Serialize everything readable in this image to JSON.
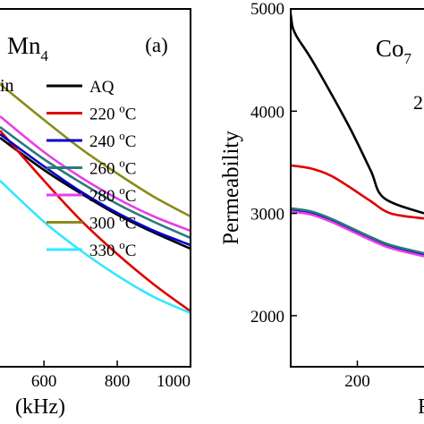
{
  "chart_data": [
    {
      "panel_label": "(a)",
      "type": "line",
      "title_partial": "Mn",
      "title_subscript": "4",
      "subtitle_partial": "in",
      "xlabel_partial": "(kHz)",
      "x_ticks": [
        "600",
        "800",
        "1000"
      ],
      "xlim": [
        480,
        1000
      ],
      "ylim": [
        0,
        100
      ],
      "legend_placement": "right",
      "series": [
        {
          "name": "AQ",
          "color": "#000000",
          "x": [
            480,
            600,
            700,
            800,
            900,
            1000
          ],
          "y": [
            64,
            55,
            48.5,
            42.5,
            37.5,
            33
          ]
        },
        {
          "name": "220 °C",
          "color": "#e00000",
          "x": [
            480,
            600,
            700,
            800,
            900,
            1000
          ],
          "y": [
            66,
            52,
            41,
            31.5,
            23,
            15.5
          ]
        },
        {
          "name": "240 °C",
          "color": "#0000cc",
          "x": [
            480,
            600,
            700,
            800,
            900,
            1000
          ],
          "y": [
            65,
            56,
            49,
            43,
            38,
            34
          ]
        },
        {
          "name": "260 °C",
          "color": "#2a7a7a",
          "x": [
            480,
            600,
            700,
            800,
            900,
            1000
          ],
          "y": [
            67,
            58,
            51.5,
            45.5,
            40.5,
            36
          ]
        },
        {
          "name": "280 °C",
          "color": "#e83ee8",
          "x": [
            480,
            600,
            700,
            800,
            900,
            1000
          ],
          "y": [
            70,
            60,
            53,
            47,
            42,
            38
          ]
        },
        {
          "name": "300 °C",
          "color": "#8a8a1a",
          "x": [
            480,
            600,
            700,
            800,
            900,
            1000
          ],
          "y": [
            79,
            69,
            61,
            54,
            47.5,
            42
          ]
        },
        {
          "name": "330 °C",
          "color": "#33e6ff",
          "x": [
            480,
            600,
            700,
            800,
            900,
            1000
          ],
          "y": [
            52,
            40.5,
            32.5,
            25.5,
            19.5,
            15
          ]
        }
      ]
    },
    {
      "type": "line",
      "title_partial": "Co",
      "title_subscript": "7",
      "subtitle_partial": "2",
      "xlabel_partial": "F",
      "ylabel": "Permeability",
      "y_ticks": [
        "2000",
        "3000",
        "4000",
        "5000"
      ],
      "x_ticks": [
        "200"
      ],
      "xlim": [
        100,
        300
      ],
      "ylim": [
        1500,
        5000
      ],
      "series": [
        {
          "color": "#000000",
          "x": [
            100,
            103,
            110,
            130,
            160,
            190,
            220,
            240,
            300
          ],
          "y": [
            4950,
            4820,
            4720,
            4520,
            4180,
            3820,
            3420,
            3150,
            3000
          ]
        },
        {
          "color": "#e00000",
          "x": [
            100,
            130,
            160,
            190,
            220,
            250,
            300
          ],
          "y": [
            3470,
            3440,
            3370,
            3250,
            3120,
            3000,
            2950
          ]
        },
        {
          "color": "#0000cc",
          "x": [
            100,
            130,
            160,
            190,
            220,
            250,
            300
          ],
          "y": [
            3040,
            3010,
            2940,
            2850,
            2760,
            2680,
            2600
          ]
        },
        {
          "color": "#2a7a7a",
          "x": [
            100,
            130,
            160,
            190,
            220,
            250,
            300
          ],
          "y": [
            3050,
            3020,
            2950,
            2860,
            2770,
            2690,
            2610
          ]
        },
        {
          "color": "#e83ee8",
          "x": [
            100,
            130,
            160,
            190,
            220,
            250,
            300
          ],
          "y": [
            3020,
            2990,
            2920,
            2830,
            2740,
            2660,
            2580
          ]
        }
      ]
    }
  ]
}
